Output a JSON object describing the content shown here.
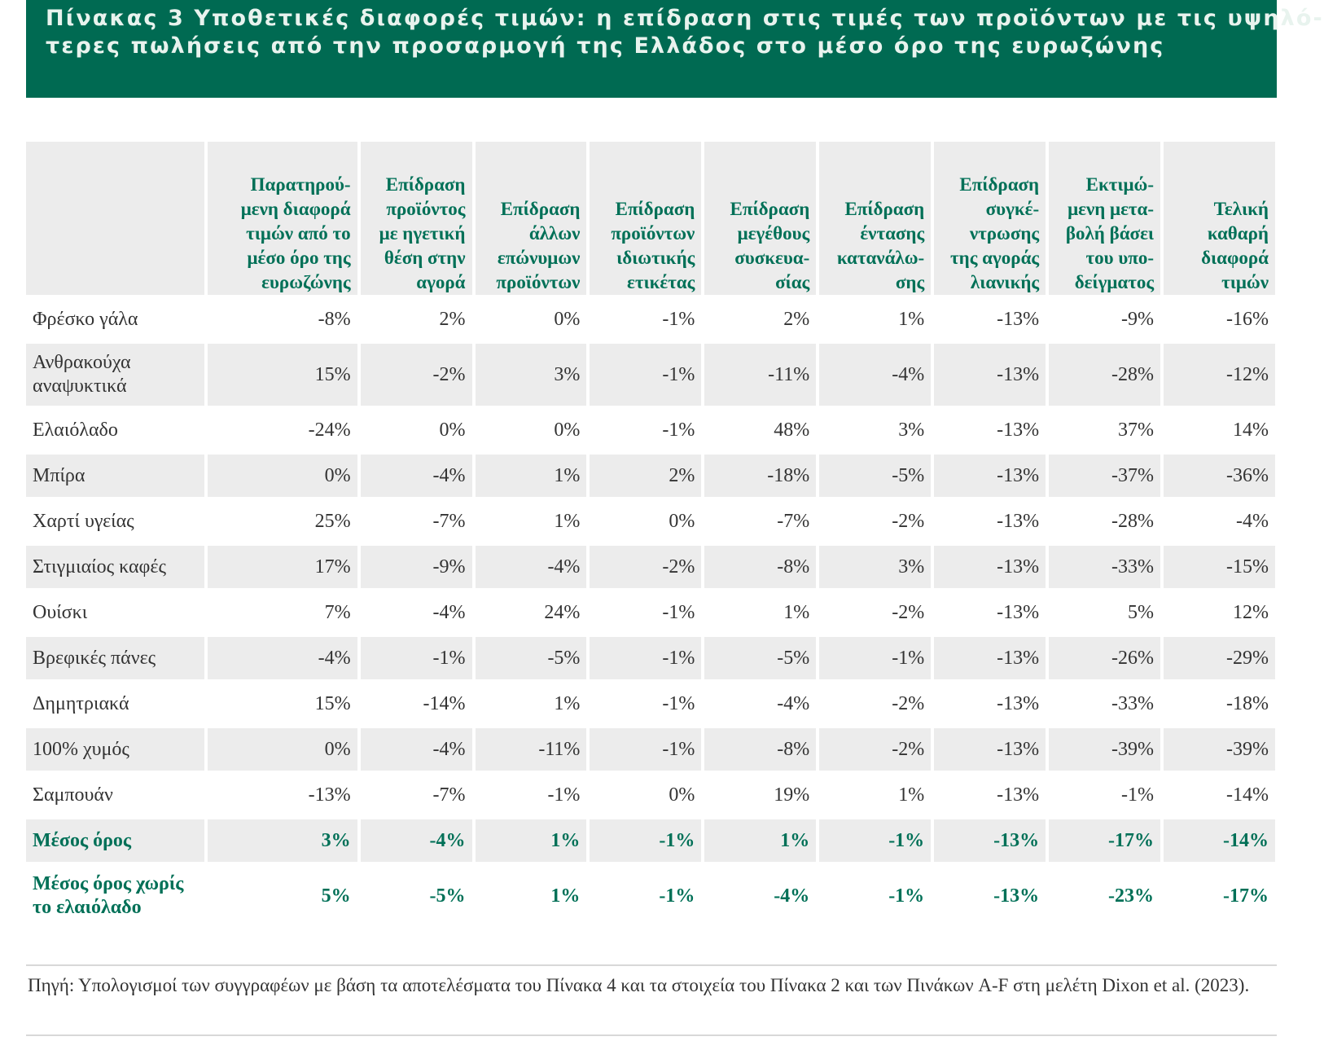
{
  "title": {
    "line1": "Πίνακας 3 Υποθετικές διαφορές τιμών: η επίδραση στις τιμές των προϊόντων με τις υψηλό-",
    "line2": "τερες πωλήσεις από την προσαρμογή της Ελλάδος στο μέσο όρο της ευρωζώνης"
  },
  "table": {
    "headers": [
      [
        "Παρατηρού-",
        "μενη διαφορά",
        "τιμών από το",
        "μέσο όρο της",
        "ευρωζώνης"
      ],
      [
        "Επίδραση",
        "προϊόντος",
        "με ηγετική",
        "θέση στην",
        "αγορά"
      ],
      [
        "Επίδραση",
        "άλλων",
        "επώνυμων",
        "προϊόντων"
      ],
      [
        "Επίδραση",
        "προϊόντων",
        "ιδιωτικής",
        "ετικέτας"
      ],
      [
        "Επίδραση",
        "μεγέθους",
        "συσκευα-",
        "σίας"
      ],
      [
        "Επίδραση",
        "έντασης",
        "κατανάλω-",
        "σης"
      ],
      [
        "Επίδραση",
        "συγκέ-",
        "ντρωσης",
        "της αγοράς",
        "λιανικής"
      ],
      [
        "Εκτιμώ-",
        "μενη μετα-",
        "βολή βάσει",
        "του υπο-",
        "δείγματος"
      ],
      [
        "Τελική",
        "καθαρή",
        "διαφορά",
        "τιμών"
      ]
    ],
    "rows": [
      {
        "label": [
          "Φρέσκο γάλα"
        ],
        "values": [
          "-8%",
          "2%",
          "0%",
          "-1%",
          "2%",
          "1%",
          "-13%",
          "-9%",
          "-16%"
        ]
      },
      {
        "label": [
          "Ανθρακούχα",
          "αναψυκτικά"
        ],
        "values": [
          "15%",
          "-2%",
          "3%",
          "-1%",
          "-11%",
          "-4%",
          "-13%",
          "-28%",
          "-12%"
        ]
      },
      {
        "label": [
          "Ελαιόλαδο"
        ],
        "values": [
          "-24%",
          "0%",
          "0%",
          "-1%",
          "48%",
          "3%",
          "-13%",
          "37%",
          "14%"
        ]
      },
      {
        "label": [
          "Μπίρα"
        ],
        "values": [
          "0%",
          "-4%",
          "1%",
          "2%",
          "-18%",
          "-5%",
          "-13%",
          "-37%",
          "-36%"
        ]
      },
      {
        "label": [
          "Χαρτί υγείας"
        ],
        "values": [
          "25%",
          "-7%",
          "1%",
          "0%",
          "-7%",
          "-2%",
          "-13%",
          "-28%",
          "-4%"
        ]
      },
      {
        "label": [
          "Στιγμιαίος καφές"
        ],
        "values": [
          "17%",
          "-9%",
          "-4%",
          "-2%",
          "-8%",
          "3%",
          "-13%",
          "-33%",
          "-15%"
        ]
      },
      {
        "label": [
          "Ουίσκι"
        ],
        "values": [
          "7%",
          "-4%",
          "24%",
          "-1%",
          "1%",
          "-2%",
          "-13%",
          "5%",
          "12%"
        ]
      },
      {
        "label": [
          "Βρεφικές πάνες"
        ],
        "values": [
          "-4%",
          "-1%",
          "-5%",
          "-1%",
          "-5%",
          "-1%",
          "-13%",
          "-26%",
          "-29%"
        ]
      },
      {
        "label": [
          "Δημητριακά"
        ],
        "values": [
          "15%",
          "-14%",
          "1%",
          "-1%",
          "-4%",
          "-2%",
          "-13%",
          "-33%",
          "-18%"
        ]
      },
      {
        "label": [
          "100% χυμός"
        ],
        "values": [
          "0%",
          "-4%",
          "-11%",
          "-1%",
          "-8%",
          "-2%",
          "-13%",
          "-39%",
          "-39%"
        ]
      },
      {
        "label": [
          "Σαμπουάν"
        ],
        "values": [
          "-13%",
          "-7%",
          "-1%",
          "0%",
          "19%",
          "1%",
          "-13%",
          "-1%",
          "-14%"
        ]
      },
      {
        "label": [
          "Μέσος όρος"
        ],
        "values": [
          "3%",
          "-4%",
          "1%",
          "-1%",
          "1%",
          "-1%",
          "-13%",
          "-17%",
          "-14%"
        ]
      },
      {
        "label": [
          "Μέσος όρος χωρίς",
          "το ελαιόλαδο"
        ],
        "values": [
          "5%",
          "-5%",
          "1%",
          "-1%",
          "-4%",
          "-1%",
          "-13%",
          "-23%",
          "-17%"
        ]
      }
    ]
  },
  "source": {
    "text": "Πηγή: Υπολογισμοί των συγγραφέων με βάση τα αποτελέσματα του Πίνακα 4 και τα στοιχεία του Πίνακα 2 και των Πινάκων A-F στη μελέτη Dixon et al. (2023)."
  },
  "colors": {
    "header_bg": "#006a52",
    "accent_text": "#007057",
    "shade": "#ececec"
  }
}
